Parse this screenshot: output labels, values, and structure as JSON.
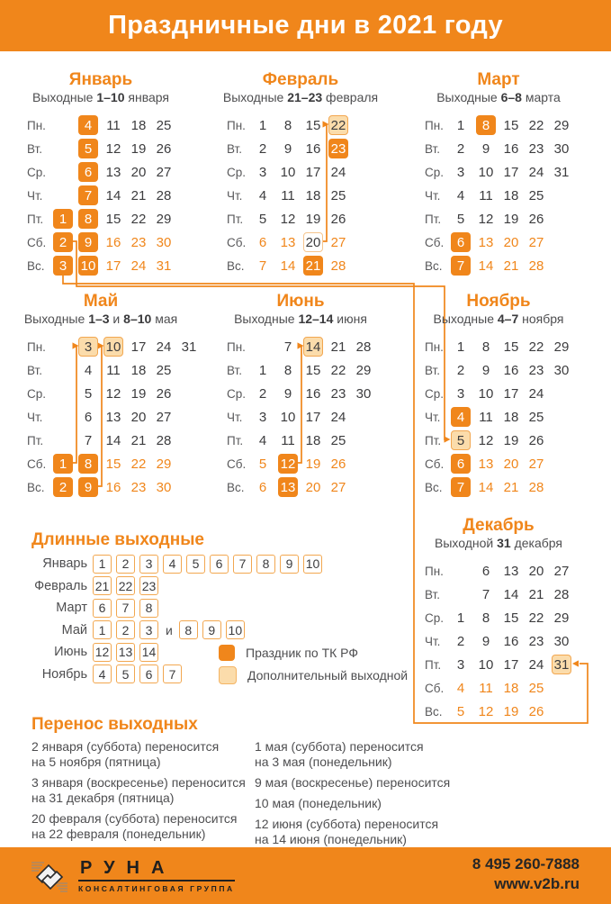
{
  "header": {
    "title": "Праздничные дни в 2021 году"
  },
  "colors": {
    "orange": "#F0861B",
    "peach": "#FBDCAB",
    "text_dark": "#3C3C3E"
  },
  "day_labels": [
    "Пн.",
    "Вт.",
    "Ср.",
    "Чт.",
    "Пт.",
    "Сб.",
    "Вс."
  ],
  "months": [
    {
      "id": "january",
      "name": "Январь",
      "subtitle": [
        [
          "Выходные ",
          0
        ],
        [
          "1–10",
          1
        ],
        [
          " января",
          0
        ]
      ],
      "grid": [
        [
          null,
          [
            "4",
            "h"
          ],
          [
            "11",
            "n"
          ],
          [
            "18",
            "n"
          ],
          [
            "25",
            "n"
          ]
        ],
        [
          null,
          [
            "5",
            "h"
          ],
          [
            "12",
            "n"
          ],
          [
            "19",
            "n"
          ],
          [
            "26",
            "n"
          ]
        ],
        [
          null,
          [
            "6",
            "h"
          ],
          [
            "13",
            "n"
          ],
          [
            "20",
            "n"
          ],
          [
            "27",
            "n"
          ]
        ],
        [
          null,
          [
            "7",
            "h"
          ],
          [
            "14",
            "n"
          ],
          [
            "21",
            "n"
          ],
          [
            "28",
            "n"
          ]
        ],
        [
          [
            "1",
            "h"
          ],
          [
            "8",
            "h"
          ],
          [
            "15",
            "n"
          ],
          [
            "22",
            "n"
          ],
          [
            "29",
            "n"
          ]
        ],
        [
          [
            "2",
            "h"
          ],
          [
            "9",
            "h"
          ],
          [
            "16",
            "wk"
          ],
          [
            "23",
            "wk"
          ],
          [
            "30",
            "wk"
          ]
        ],
        [
          [
            "3",
            "h"
          ],
          [
            "10",
            "h"
          ],
          [
            "17",
            "wk"
          ],
          [
            "24",
            "wk"
          ],
          [
            "31",
            "wk"
          ]
        ]
      ]
    },
    {
      "id": "february",
      "name": "Февраль",
      "subtitle": [
        [
          "Выходные ",
          0
        ],
        [
          "21–23",
          1
        ],
        [
          " февраля",
          0
        ]
      ],
      "grid": [
        [
          [
            "1",
            "n"
          ],
          [
            "8",
            "n"
          ],
          [
            "15",
            "n"
          ],
          [
            "22",
            "a"
          ]
        ],
        [
          [
            "2",
            "n"
          ],
          [
            "9",
            "n"
          ],
          [
            "16",
            "n"
          ],
          [
            "23",
            "h"
          ]
        ],
        [
          [
            "3",
            "n"
          ],
          [
            "10",
            "n"
          ],
          [
            "17",
            "n"
          ],
          [
            "24",
            "n"
          ]
        ],
        [
          [
            "4",
            "n"
          ],
          [
            "11",
            "n"
          ],
          [
            "18",
            "n"
          ],
          [
            "25",
            "n"
          ]
        ],
        [
          [
            "5",
            "n"
          ],
          [
            "12",
            "n"
          ],
          [
            "19",
            "n"
          ],
          [
            "26",
            "n"
          ]
        ],
        [
          [
            "6",
            "wk"
          ],
          [
            "13",
            "wk"
          ],
          [
            "20",
            "w"
          ],
          [
            "27",
            "wk"
          ]
        ],
        [
          [
            "7",
            "wk"
          ],
          [
            "14",
            "wk"
          ],
          [
            "21",
            "h"
          ],
          [
            "28",
            "wk"
          ]
        ]
      ]
    },
    {
      "id": "march",
      "name": "Март",
      "subtitle": [
        [
          "Выходные ",
          0
        ],
        [
          "6–8",
          1
        ],
        [
          " марта",
          0
        ]
      ],
      "grid": [
        [
          [
            "1",
            "n"
          ],
          [
            "8",
            "h"
          ],
          [
            "15",
            "n"
          ],
          [
            "22",
            "n"
          ],
          [
            "29",
            "n"
          ]
        ],
        [
          [
            "2",
            "n"
          ],
          [
            "9",
            "n"
          ],
          [
            "16",
            "n"
          ],
          [
            "23",
            "n"
          ],
          [
            "30",
            "n"
          ]
        ],
        [
          [
            "3",
            "n"
          ],
          [
            "10",
            "n"
          ],
          [
            "17",
            "n"
          ],
          [
            "24",
            "n"
          ],
          [
            "31",
            "n"
          ]
        ],
        [
          [
            "4",
            "n"
          ],
          [
            "11",
            "n"
          ],
          [
            "18",
            "n"
          ],
          [
            "25",
            "n"
          ],
          null
        ],
        [
          [
            "5",
            "n"
          ],
          [
            "12",
            "n"
          ],
          [
            "19",
            "n"
          ],
          [
            "26",
            "n"
          ],
          null
        ],
        [
          [
            "6",
            "h"
          ],
          [
            "13",
            "wk"
          ],
          [
            "20",
            "wk"
          ],
          [
            "27",
            "wk"
          ],
          null
        ],
        [
          [
            "7",
            "h"
          ],
          [
            "14",
            "wk"
          ],
          [
            "21",
            "wk"
          ],
          [
            "28",
            "wk"
          ],
          null
        ]
      ]
    },
    {
      "id": "may",
      "name": "Май",
      "subtitle": [
        [
          "Выходные ",
          0
        ],
        [
          "1–3",
          1
        ],
        [
          " и ",
          0
        ],
        [
          "8–10",
          1
        ],
        [
          " мая",
          0
        ]
      ],
      "grid": [
        [
          null,
          [
            "3",
            "a"
          ],
          [
            "10",
            "a"
          ],
          [
            "17",
            "n"
          ],
          [
            "24",
            "n"
          ],
          [
            "31",
            "n"
          ]
        ],
        [
          null,
          [
            "4",
            "n"
          ],
          [
            "11",
            "n"
          ],
          [
            "18",
            "n"
          ],
          [
            "25",
            "n"
          ],
          null
        ],
        [
          null,
          [
            "5",
            "n"
          ],
          [
            "12",
            "n"
          ],
          [
            "19",
            "n"
          ],
          [
            "26",
            "n"
          ],
          null
        ],
        [
          null,
          [
            "6",
            "n"
          ],
          [
            "13",
            "n"
          ],
          [
            "20",
            "n"
          ],
          [
            "27",
            "n"
          ],
          null
        ],
        [
          null,
          [
            "7",
            "n"
          ],
          [
            "14",
            "n"
          ],
          [
            "21",
            "n"
          ],
          [
            "28",
            "n"
          ],
          null
        ],
        [
          [
            "1",
            "h"
          ],
          [
            "8",
            "h"
          ],
          [
            "15",
            "wk"
          ],
          [
            "22",
            "wk"
          ],
          [
            "29",
            "wk"
          ],
          null
        ],
        [
          [
            "2",
            "h"
          ],
          [
            "9",
            "h"
          ],
          [
            "16",
            "wk"
          ],
          [
            "23",
            "wk"
          ],
          [
            "30",
            "wk"
          ],
          null
        ]
      ]
    },
    {
      "id": "june",
      "name": "Июнь",
      "subtitle": [
        [
          "Выходные ",
          0
        ],
        [
          "12–14",
          1
        ],
        [
          " июня",
          0
        ]
      ],
      "grid": [
        [
          null,
          [
            "7",
            "n"
          ],
          [
            "14",
            "a"
          ],
          [
            "21",
            "n"
          ],
          [
            "28",
            "n"
          ]
        ],
        [
          [
            "1",
            "n"
          ],
          [
            "8",
            "n"
          ],
          [
            "15",
            "n"
          ],
          [
            "22",
            "n"
          ],
          [
            "29",
            "n"
          ]
        ],
        [
          [
            "2",
            "n"
          ],
          [
            "9",
            "n"
          ],
          [
            "16",
            "n"
          ],
          [
            "23",
            "n"
          ],
          [
            "30",
            "n"
          ]
        ],
        [
          [
            "3",
            "n"
          ],
          [
            "10",
            "n"
          ],
          [
            "17",
            "n"
          ],
          [
            "24",
            "n"
          ],
          null
        ],
        [
          [
            "4",
            "n"
          ],
          [
            "11",
            "n"
          ],
          [
            "18",
            "n"
          ],
          [
            "25",
            "n"
          ],
          null
        ],
        [
          [
            "5",
            "wk"
          ],
          [
            "12",
            "h"
          ],
          [
            "19",
            "wk"
          ],
          [
            "26",
            "wk"
          ],
          null
        ],
        [
          [
            "6",
            "wk"
          ],
          [
            "13",
            "h"
          ],
          [
            "20",
            "wk"
          ],
          [
            "27",
            "wk"
          ],
          null
        ]
      ]
    },
    {
      "id": "november",
      "name": "Ноябрь",
      "subtitle": [
        [
          "Выходные ",
          0
        ],
        [
          "4–7",
          1
        ],
        [
          " ноября",
          0
        ]
      ],
      "grid": [
        [
          [
            "1",
            "n"
          ],
          [
            "8",
            "n"
          ],
          [
            "15",
            "n"
          ],
          [
            "22",
            "n"
          ],
          [
            "29",
            "n"
          ]
        ],
        [
          [
            "2",
            "n"
          ],
          [
            "9",
            "n"
          ],
          [
            "16",
            "n"
          ],
          [
            "23",
            "n"
          ],
          [
            "30",
            "n"
          ]
        ],
        [
          [
            "3",
            "n"
          ],
          [
            "10",
            "n"
          ],
          [
            "17",
            "n"
          ],
          [
            "24",
            "n"
          ],
          null
        ],
        [
          [
            "4",
            "h"
          ],
          [
            "11",
            "n"
          ],
          [
            "18",
            "n"
          ],
          [
            "25",
            "n"
          ],
          null
        ],
        [
          [
            "5",
            "a"
          ],
          [
            "12",
            "n"
          ],
          [
            "19",
            "n"
          ],
          [
            "26",
            "n"
          ],
          null
        ],
        [
          [
            "6",
            "h"
          ],
          [
            "13",
            "wk"
          ],
          [
            "20",
            "wk"
          ],
          [
            "27",
            "wk"
          ],
          null
        ],
        [
          [
            "7",
            "h"
          ],
          [
            "14",
            "wk"
          ],
          [
            "21",
            "wk"
          ],
          [
            "28",
            "wk"
          ],
          null
        ]
      ]
    },
    {
      "id": "december",
      "name": "Декабрь",
      "subtitle": [
        [
          "Выходной ",
          0
        ],
        [
          "31",
          1
        ],
        [
          " декабря",
          0
        ]
      ],
      "grid": [
        [
          null,
          [
            "6",
            "n"
          ],
          [
            "13",
            "n"
          ],
          [
            "20",
            "n"
          ],
          [
            "27",
            "n"
          ]
        ],
        [
          null,
          [
            "7",
            "n"
          ],
          [
            "14",
            "n"
          ],
          [
            "21",
            "n"
          ],
          [
            "28",
            "n"
          ]
        ],
        [
          [
            "1",
            "n"
          ],
          [
            "8",
            "n"
          ],
          [
            "15",
            "n"
          ],
          [
            "22",
            "n"
          ],
          [
            "29",
            "n"
          ]
        ],
        [
          [
            "2",
            "n"
          ],
          [
            "9",
            "n"
          ],
          [
            "16",
            "n"
          ],
          [
            "23",
            "n"
          ],
          [
            "30",
            "n"
          ]
        ],
        [
          [
            "3",
            "n"
          ],
          [
            "10",
            "n"
          ],
          [
            "17",
            "n"
          ],
          [
            "24",
            "n"
          ],
          [
            "31",
            "a"
          ]
        ],
        [
          [
            "4",
            "wk"
          ],
          [
            "11",
            "wk"
          ],
          [
            "18",
            "wk"
          ],
          [
            "25",
            "wk"
          ],
          null
        ],
        [
          [
            "5",
            "wk"
          ],
          [
            "12",
            "wk"
          ],
          [
            "19",
            "wk"
          ],
          [
            "26",
            "wk"
          ],
          null
        ]
      ]
    }
  ],
  "long_weekends": {
    "title": "Длинные выходные",
    "rows": [
      {
        "label": "Январь",
        "groups": [
          [
            "1",
            "2",
            "3",
            "4",
            "5",
            "6",
            "7",
            "8",
            "9",
            "10"
          ]
        ]
      },
      {
        "label": "Февраль",
        "groups": [
          [
            "21",
            "22",
            "23"
          ]
        ]
      },
      {
        "label": "Март",
        "groups": [
          [
            "6",
            "7",
            "8"
          ]
        ]
      },
      {
        "label": "Май",
        "groups": [
          [
            "1",
            "2",
            "3"
          ],
          [
            "8",
            "9",
            "10"
          ]
        ],
        "separator": "и"
      },
      {
        "label": "Июнь",
        "groups": [
          [
            "12",
            "13",
            "14"
          ]
        ]
      },
      {
        "label": "Ноябрь",
        "groups": [
          [
            "4",
            "5",
            "6",
            "7"
          ]
        ]
      }
    ]
  },
  "legend": {
    "items": [
      {
        "label": "Праздник по ТК РФ",
        "type": "holiday"
      },
      {
        "label": "Дополнительный выходной",
        "type": "extra"
      }
    ]
  },
  "transfers": {
    "title": "Перенос выходных",
    "columns": [
      [
        [
          "2 января (суббота) переносится",
          "на 5 ноября (пятница)"
        ],
        [
          "3 января (воскресенье) переносится",
          "на 31 декабря (пятница)"
        ],
        [
          "20 февраля (суббота) переносится",
          "на 22 февраля (понедельник)"
        ]
      ],
      [
        [
          "1 мая (суббота) переносится",
          "на 3 мая (понедельник)"
        ],
        [
          "9 мая (воскресенье) переносится"
        ],
        [
          "10 мая (понедельник)"
        ],
        [
          "12 июня (суббота) переносится",
          "на 14 июня (понедельник)"
        ]
      ]
    ]
  },
  "footer": {
    "company": "РУНА",
    "company_sub": "КОНСАЛТИНГОВАЯ ГРУППА",
    "phone": "8 495 260-7888",
    "website": "www.v2b.ru"
  }
}
